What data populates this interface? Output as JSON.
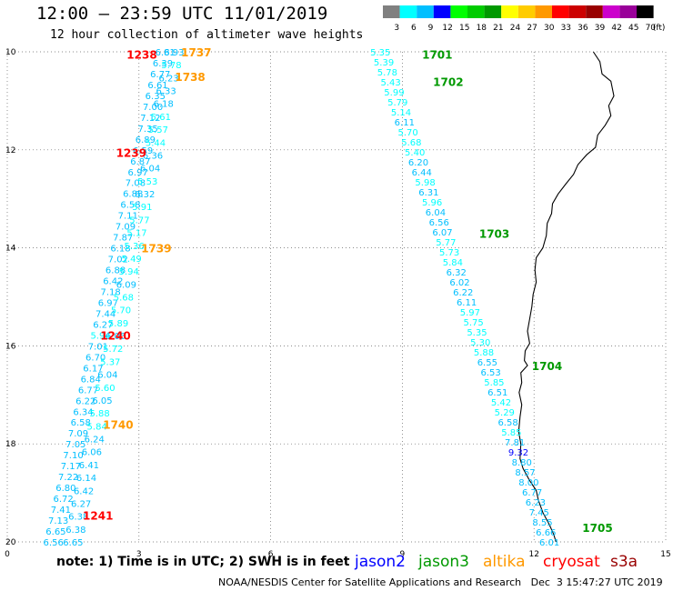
{
  "title": "12:00 — 23:59 UTC 11/01/2019",
  "subtitle": "12 hour collection of altimeter wave heights",
  "note": "note: 1) Time is in UTC; 2) SWH is in feet",
  "credit": "NOAA/NESDIS Center for Satellite Applications and Research   Dec  3 15:47:27 UTC 2019",
  "satellites": [
    {
      "name": "jason2",
      "color": "#0000ff"
    },
    {
      "name": "jason3",
      "color": "#009900"
    },
    {
      "name": "altika",
      "color": "#ff9900"
    },
    {
      "name": "cryosat",
      "color": "#ff0000"
    },
    {
      "name": "s3a",
      "color": "#990000"
    }
  ],
  "colorbar": {
    "labels": [
      "3",
      "6",
      "9",
      "12",
      "15",
      "18",
      "21",
      "24",
      "27",
      "30",
      "33",
      "36",
      "39",
      "42",
      "45",
      "70",
      "(ft)"
    ],
    "colors": [
      "#808080",
      "#00ffff",
      "#00bfff",
      "#0000ff",
      "#00ff00",
      "#00cc00",
      "#009900",
      "#ffff00",
      "#ffcc00",
      "#ff9900",
      "#ff0000",
      "#cc0000",
      "#990000",
      "#cc00cc",
      "#990099",
      "#000000"
    ]
  },
  "axes": {
    "x_ticks": [
      "0",
      "3",
      "6",
      "9",
      "12",
      "15"
    ],
    "y_ticks": [
      "10",
      "12",
      "14",
      "16",
      "18",
      "20"
    ],
    "x_range": [
      0,
      15
    ],
    "y_range": [
      10,
      20
    ]
  },
  "tracks": [
    {
      "id": "left-outer",
      "start": [
        3.6,
        10.0
      ],
      "end": [
        1.05,
        20.0
      ],
      "values": [
        "6.81",
        "6.39",
        "6.77",
        "6.61",
        "6.35",
        "7.00",
        "7.12",
        "7.35",
        "6.89",
        "6.59",
        "6.87",
        "6.97",
        "7.08",
        "6.88",
        "6.58",
        "7.11",
        "7.09",
        "7.87",
        "6.18",
        "7.02",
        "6.88",
        "6.42",
        "7.18",
        "6.97",
        "7.44",
        "6.27",
        "5.94",
        "7.01",
        "6.70",
        "6.17",
        "6.84",
        "6.77",
        "6.22",
        "6.34",
        "6.58",
        "7.09",
        "7.05",
        "7.10",
        "7.17",
        "7.22",
        "6.80",
        "6.72",
        "7.41",
        "7.13",
        "6.65",
        "6.56"
      ]
    },
    {
      "id": "left-inner",
      "start": [
        3.8,
        10.0
      ],
      "end": [
        1.5,
        20.0
      ],
      "values": [
        "6.93",
        "5.78",
        "6.23",
        "6.33",
        "6.18",
        "5.61",
        "5.57",
        "5.44",
        "6.36",
        "6.04",
        "5.53",
        "6.32",
        "5.91",
        "5.77",
        "5.17",
        "5.36",
        "5.49",
        "5.94",
        "6.09",
        "5.68",
        "5.70",
        "5.89",
        "6.05",
        "5.72",
        "5.37",
        "6.04",
        "5.60",
        "6.05",
        "5.88",
        "5.84",
        "6.24",
        "6.06",
        "6.41",
        "6.14",
        "6.42",
        "6.27",
        "6.38",
        "6.38",
        "6.65"
      ]
    },
    {
      "id": "right",
      "start": [
        8.5,
        10.0
      ],
      "end": [
        12.35,
        20.0
      ],
      "values": [
        "5.35",
        "5.39",
        "5.78",
        "5.43",
        "5.99",
        "5.79",
        "5.14",
        "6.11",
        "5.70",
        "5.68",
        "5.40",
        "6.20",
        "6.44",
        "5.98",
        "6.31",
        "5.96",
        "6.04",
        "6.56",
        "6.07",
        "5.77",
        "5.73",
        "5.84",
        "6.32",
        "6.02",
        "6.22",
        "6.11",
        "5.97",
        "5.75",
        "5.35",
        "5.30",
        "5.88",
        "6.55",
        "6.53",
        "5.85",
        "6.51",
        "5.42",
        "5.29",
        "6.58",
        "5.85",
        "7.81",
        "9.32",
        "8.80",
        "8.57",
        "8.00",
        "6.77",
        "6.23",
        "7.45",
        "8.55",
        "6.66",
        "6.01"
      ]
    }
  ],
  "time_labels": [
    {
      "text": "1238",
      "lon": 2.72,
      "lat": 10.05,
      "color": "#ff0000"
    },
    {
      "text": "1737",
      "lon": 3.96,
      "lat": 10.0,
      "color": "#ff9900"
    },
    {
      "text": "1738",
      "lon": 3.82,
      "lat": 10.5,
      "color": "#ff9900"
    },
    {
      "text": "1239",
      "lon": 2.48,
      "lat": 12.05,
      "color": "#ff0000"
    },
    {
      "text": "1739",
      "lon": 3.05,
      "lat": 14.0,
      "color": "#ff9900"
    },
    {
      "text": "1240",
      "lon": 2.12,
      "lat": 15.78,
      "color": "#ff0000"
    },
    {
      "text": "1740",
      "lon": 2.18,
      "lat": 17.6,
      "color": "#ff9900"
    },
    {
      "text": "1241",
      "lon": 1.72,
      "lat": 19.45,
      "color": "#ff0000"
    },
    {
      "text": "1701",
      "lon": 9.45,
      "lat": 10.05,
      "color": "#009900"
    },
    {
      "text": "1702",
      "lon": 9.7,
      "lat": 10.6,
      "color": "#009900"
    },
    {
      "text": "1703",
      "lon": 10.75,
      "lat": 13.7,
      "color": "#009900"
    },
    {
      "text": "1704",
      "lon": 11.95,
      "lat": 16.4,
      "color": "#009900"
    },
    {
      "text": "1705",
      "lon": 13.1,
      "lat": 19.7,
      "color": "#009900"
    }
  ],
  "coastline": [
    [
      13.35,
      10.0
    ],
    [
      13.5,
      10.2
    ],
    [
      13.55,
      10.45
    ],
    [
      13.75,
      10.6
    ],
    [
      13.82,
      10.9
    ],
    [
      13.7,
      11.1
    ],
    [
      13.75,
      11.3
    ],
    [
      13.62,
      11.5
    ],
    [
      13.45,
      11.7
    ],
    [
      13.4,
      11.95
    ],
    [
      13.2,
      12.1
    ],
    [
      13.0,
      12.3
    ],
    [
      12.9,
      12.5
    ],
    [
      12.72,
      12.7
    ],
    [
      12.55,
      12.9
    ],
    [
      12.42,
      13.1
    ],
    [
      12.4,
      13.3
    ],
    [
      12.3,
      13.5
    ],
    [
      12.28,
      13.75
    ],
    [
      12.2,
      14.0
    ],
    [
      12.05,
      14.2
    ],
    [
      12.02,
      14.45
    ],
    [
      12.05,
      14.7
    ],
    [
      11.98,
      14.95
    ],
    [
      11.95,
      15.2
    ],
    [
      11.9,
      15.45
    ],
    [
      11.85,
      15.7
    ],
    [
      11.9,
      15.95
    ],
    [
      11.8,
      16.1
    ],
    [
      11.78,
      16.3
    ],
    [
      11.85,
      16.4
    ],
    [
      11.7,
      16.55
    ],
    [
      11.72,
      16.75
    ],
    [
      11.66,
      16.95
    ],
    [
      11.72,
      17.2
    ],
    [
      11.68,
      17.45
    ],
    [
      11.65,
      17.75
    ],
    [
      11.7,
      18.0
    ],
    [
      11.68,
      18.3
    ],
    [
      11.75,
      18.5
    ],
    [
      11.9,
      18.75
    ],
    [
      12.05,
      18.95
    ],
    [
      12.1,
      19.15
    ],
    [
      12.2,
      19.4
    ],
    [
      12.35,
      19.65
    ],
    [
      12.45,
      19.85
    ],
    [
      12.5,
      20.0
    ]
  ]
}
